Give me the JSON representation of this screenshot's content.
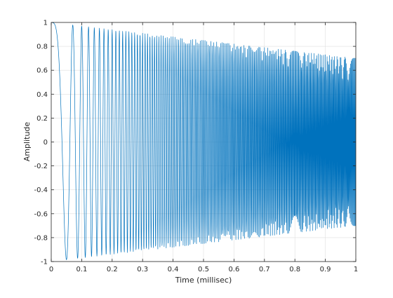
{
  "chart_data": {
    "type": "line",
    "title": "",
    "xlabel": "Time (millisec)",
    "ylabel": "Amplitude",
    "xlim": [
      0,
      1
    ],
    "ylim": [
      -1,
      1
    ],
    "xticks": [
      0,
      0.1,
      0.2,
      0.3,
      0.4,
      0.5,
      0.6,
      0.7,
      0.8,
      0.9,
      1
    ],
    "xtick_labels": [
      "0",
      "0.1",
      "0.2",
      "0.3",
      "0.4",
      "0.5",
      "0.6",
      "0.7",
      "0.8",
      "0.9",
      "1"
    ],
    "yticks": [
      -1,
      -0.8,
      -0.6,
      -0.4,
      -0.2,
      0,
      0.2,
      0.4,
      0.6,
      0.8,
      1
    ],
    "ytick_labels": [
      "-1",
      "-0.8",
      "-0.6",
      "-0.4",
      "-0.2",
      "0",
      "0.2",
      "0.4",
      "0.6",
      "0.8",
      "1"
    ],
    "grid": true,
    "series": [
      {
        "color": "#0072bd",
        "x_start": 0,
        "x_end": 1,
        "sample_count": 1600,
        "description_of_shape": "chirp",
        "instantaneous_frequency_start_khz": 0,
        "instantaneous_frequency_end_khz": 400,
        "amplitude_start": 1.0,
        "amplitude_end": 0.7
      }
    ]
  },
  "colors": {
    "line": "#0072bd",
    "axes": "#262626",
    "grid": "#dfdfdf"
  }
}
